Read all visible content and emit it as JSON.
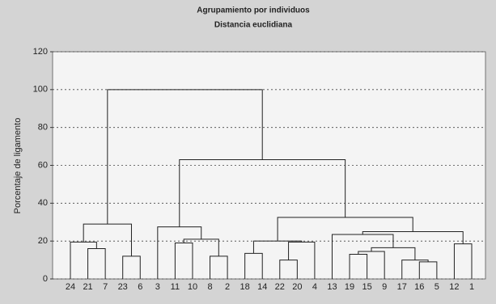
{
  "chart_data": {
    "type": "dendrogram",
    "title": "Agrupamiento por individuos",
    "subtitle": "Distancia euclidiana",
    "y_label": "Porcentaje de ligamento",
    "ylim": [
      0,
      120
    ],
    "yticks": [
      0,
      20,
      40,
      60,
      80,
      100,
      120
    ],
    "grid": true,
    "color": "#222222",
    "tree": {
      "height": 100,
      "children": [
        {
          "height": 29,
          "children": [
            {
              "height": 19.5,
              "children": [
                {
                  "label": "24"
                },
                {
                  "height": 16,
                  "children": [
                    {
                      "label": "21"
                    },
                    {
                      "label": "7"
                    }
                  ]
                }
              ]
            },
            {
              "height": 12,
              "children": [
                {
                  "label": "23"
                },
                {
                  "label": "6"
                }
              ]
            }
          ]
        },
        {
          "height": 63,
          "children": [
            {
              "height": 27.5,
              "children": [
                {
                  "label": "3"
                },
                {
                  "height": 21,
                  "children": [
                    {
                      "height": 19,
                      "children": [
                        {
                          "label": "11"
                        },
                        {
                          "label": "10"
                        }
                      ]
                    },
                    {
                      "height": 12,
                      "children": [
                        {
                          "label": "8"
                        },
                        {
                          "label": "2"
                        }
                      ]
                    }
                  ]
                }
              ]
            },
            {
              "height": 32.5,
              "children": [
                {
                  "height": 20,
                  "children": [
                    {
                      "height": 13.5,
                      "children": [
                        {
                          "label": "18"
                        },
                        {
                          "label": "14"
                        }
                      ]
                    },
                    {
                      "height": 19.5,
                      "children": [
                        {
                          "height": 10,
                          "children": [
                            {
                              "label": "22"
                            },
                            {
                              "label": "20"
                            }
                          ]
                        },
                        {
                          "label": "4"
                        }
                      ]
                    }
                  ]
                },
                {
                  "height": 25,
                  "children": [
                    {
                      "height": 23.5,
                      "children": [
                        {
                          "label": "13"
                        },
                        {
                          "height": 16.5,
                          "children": [
                            {
                              "height": 14.5,
                              "children": [
                                {
                                  "height": 13,
                                  "children": [
                                    {
                                      "label": "19"
                                    },
                                    {
                                      "label": "15"
                                    }
                                  ]
                                },
                                {
                                  "label": "9"
                                }
                              ]
                            },
                            {
                              "height": 10,
                              "children": [
                                {
                                  "label": "17"
                                },
                                {
                                  "height": 9,
                                  "children": [
                                    {
                                      "label": "16"
                                    },
                                    {
                                      "label": "5"
                                    }
                                  ]
                                }
                              ]
                            }
                          ]
                        }
                      ]
                    },
                    {
                      "height": 18.5,
                      "children": [
                        {
                          "label": "12"
                        },
                        {
                          "label": "1"
                        }
                      ]
                    }
                  ]
                }
              ]
            }
          ]
        }
      ]
    }
  }
}
